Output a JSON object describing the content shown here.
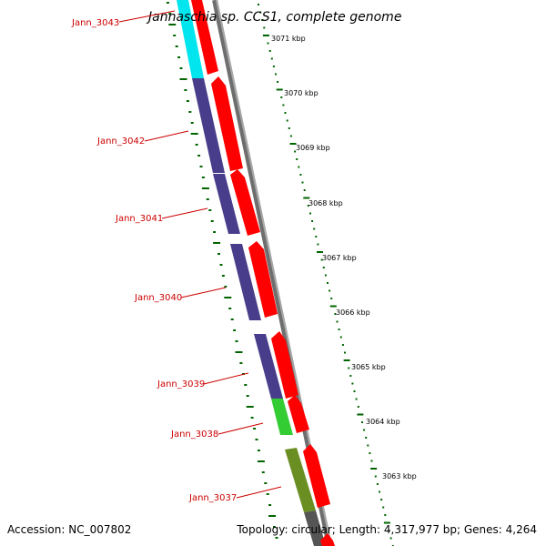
{
  "title": "Jannaschia sp. CCS1, complete genome",
  "footer": {
    "accession": "Accession: NC_007802",
    "summary": "Topology: circular; Length: 4,317,977 bp; Genes: 4,264"
  },
  "colors": {
    "backbone": "#8c8c8c",
    "forward_cds": "#ff0000",
    "track_cyan": "#00e5ee",
    "track_purple": "#483d8b",
    "track_green": "#33cc33",
    "track_olive": "#6b8e23",
    "ruler": "#006400",
    "label": "#cc0000"
  },
  "kbp_ruler": [
    "3071 kbp",
    "3070 kbp",
    "3069 kbp",
    "3068 kbp",
    "3067 kbp",
    "3066 kbp",
    "3065 kbp",
    "3064 kbp",
    "3063 kbp"
  ],
  "genes": [
    {
      "name": "Jann_3043",
      "color": "cyan"
    },
    {
      "name": "Jann_3042",
      "color": "purple"
    },
    {
      "name": "Jann_3041",
      "color": "purple"
    },
    {
      "name": "Jann_3040",
      "color": "purple"
    },
    {
      "name": "Jann_3039",
      "color": "purple"
    },
    {
      "name": "Jann_3038",
      "color": "green"
    },
    {
      "name": "Jann_3037",
      "color": "olive"
    }
  ]
}
